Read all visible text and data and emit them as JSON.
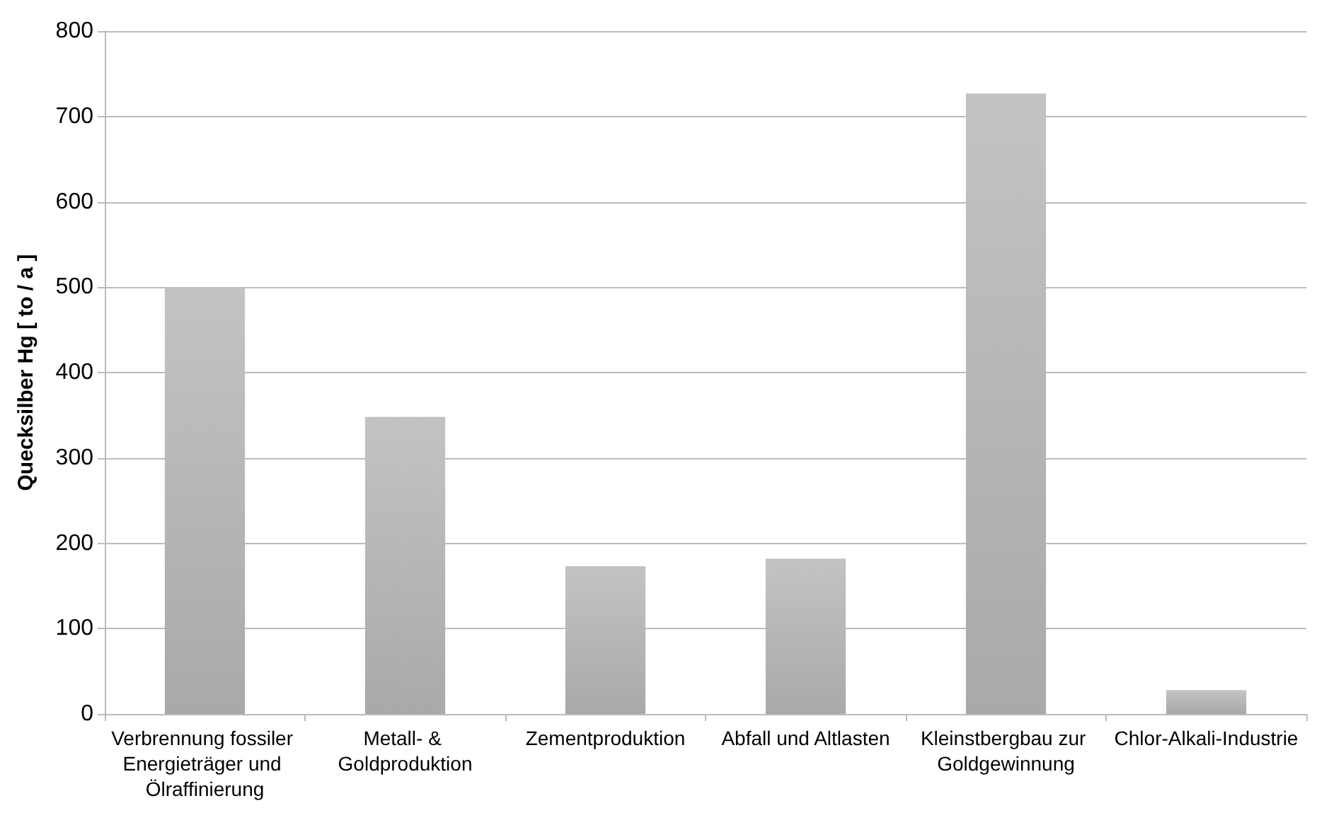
{
  "chart_data": {
    "type": "bar",
    "ylabel": "Quecksilber Hg [ to / a ]",
    "categories": [
      "Verbrennung fossiler Energieträger und Ölraffinierung",
      "Metall- & Goldproduktion",
      "Zementproduktion",
      "Abfall und Altlasten",
      "Kleinstbergbau zur Goldgewinnung",
      "Chlor-Alkali-Industrie"
    ],
    "values": [
      500,
      348,
      173,
      182,
      727,
      28
    ],
    "color": "#a9a9a9",
    "ylim": [
      0,
      800
    ],
    "yticks": [
      0,
      100,
      200,
      300,
      400,
      500,
      600,
      700,
      800
    ],
    "grid": "y"
  }
}
